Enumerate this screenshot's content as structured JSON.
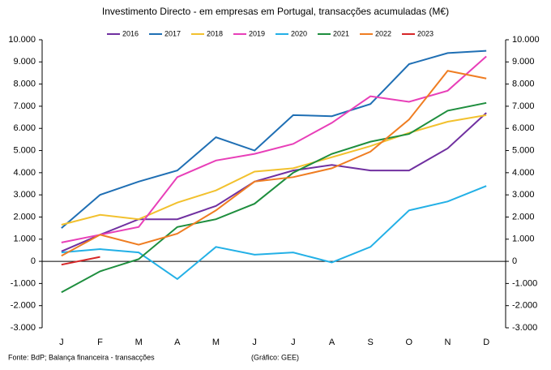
{
  "chart_data": {
    "type": "line",
    "title": "Investimento Directo -  em empresas em Portugal, transacções acumuladas (M€)",
    "categories": [
      "J",
      "F",
      "M",
      "A",
      "M",
      "J",
      "J",
      "A",
      "S",
      "O",
      "N",
      "D"
    ],
    "series": [
      {
        "name": "2016",
        "color": "#7030a0",
        "values": [
          450,
          1200,
          1900,
          1900,
          2500,
          3600,
          4100,
          4350,
          4100,
          4100,
          5100,
          6700
        ]
      },
      {
        "name": "2017",
        "color": "#1f6fb4",
        "values": [
          1500,
          3000,
          3600,
          4100,
          5600,
          5000,
          6600,
          6550,
          7100,
          8900,
          9400,
          9500
        ]
      },
      {
        "name": "2018",
        "color": "#f2c12e",
        "values": [
          1650,
          2100,
          1900,
          2650,
          3200,
          4050,
          4200,
          4700,
          5200,
          5800,
          6300,
          6600
        ]
      },
      {
        "name": "2019",
        "color": "#e83fb8",
        "values": [
          850,
          1200,
          1550,
          3800,
          4550,
          4850,
          5300,
          6250,
          7450,
          7200,
          7700,
          9250
        ]
      },
      {
        "name": "2020",
        "color": "#23b0e6",
        "values": [
          400,
          550,
          400,
          -800,
          650,
          300,
          400,
          -50,
          650,
          2300,
          2700,
          3400
        ]
      },
      {
        "name": "2021",
        "color": "#1e8e3e",
        "values": [
          -1400,
          -450,
          100,
          1550,
          1900,
          2600,
          4000,
          4850,
          5400,
          5750,
          6800,
          7150
        ]
      },
      {
        "name": "2022",
        "color": "#ef7d22",
        "values": [
          250,
          1200,
          750,
          1250,
          2300,
          3600,
          3800,
          4200,
          4950,
          6400,
          8600,
          8250
        ]
      },
      {
        "name": "2023",
        "color": "#d62628",
        "values": [
          -150,
          200,
          null,
          null,
          null,
          null,
          null,
          null,
          null,
          null,
          null,
          null
        ]
      }
    ],
    "ylim": [
      -3000,
      10000
    ],
    "yticks": [
      {
        "value": -3000,
        "label": "-3.000"
      },
      {
        "value": -2000,
        "label": "-2.000"
      },
      {
        "value": -1000,
        "label": "-1.000"
      },
      0,
      {
        "value": 1000,
        "label": "1.000"
      },
      {
        "value": 2000,
        "label": "2.000"
      },
      {
        "value": 3000,
        "label": "3.000"
      },
      {
        "value": 4000,
        "label": "4.000"
      },
      {
        "value": 5000,
        "label": "5.000"
      },
      {
        "value": 6000,
        "label": "6.000"
      },
      {
        "value": 7000,
        "label": "7.000"
      },
      {
        "value": 8000,
        "label": "8.000"
      },
      {
        "value": 9000,
        "label": "9.000"
      },
      {
        "value": 10000,
        "label": "10.000"
      }
    ],
    "y2lim": [
      -3000,
      10000
    ],
    "y2ticks": [
      {
        "value": -3000,
        "label": "-3.000"
      },
      {
        "value": -2000,
        "label": "-2.000"
      },
      {
        "value": -1000,
        "label": "-1.000"
      },
      0,
      {
        "value": 1000,
        "label": "1.000"
      },
      {
        "value": 2000,
        "label": "2.000"
      },
      {
        "value": 3000,
        "label": "3.000"
      },
      {
        "value": 4000,
        "label": "4.000"
      },
      {
        "value": 5000,
        "label": "5.000"
      },
      {
        "value": 6000,
        "label": "6.000"
      },
      {
        "value": 7000,
        "label": "7.000"
      },
      {
        "value": 8000,
        "label": "8.000"
      },
      {
        "value": 9000,
        "label": "9.000"
      },
      {
        "value": 10000,
        "label": "10.000"
      }
    ],
    "grid": false,
    "legend": "top",
    "source": "Fonte: BdP; Balança financeira  - transacções",
    "credit": "(Gráfico:  GEE)"
  }
}
